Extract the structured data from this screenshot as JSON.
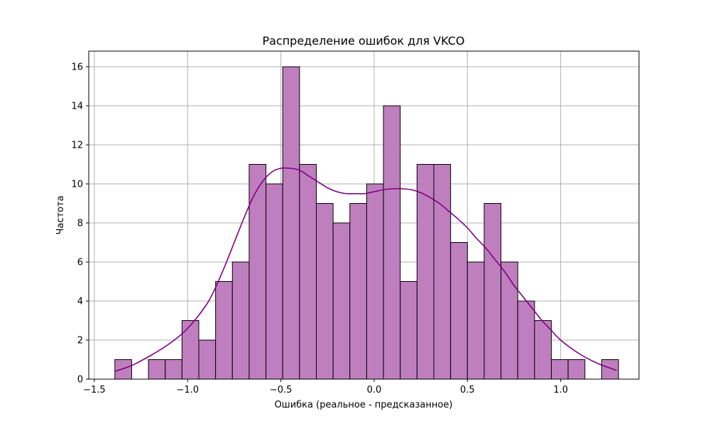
{
  "chart_data": {
    "type": "bar",
    "title": "Распределение ошибок для VKCO",
    "xlabel": "Ошибка (реальное - предсказанное)",
    "ylabel": "Частота",
    "xlim": [
      -1.53,
      1.42
    ],
    "ylim": [
      0,
      16.8
    ],
    "x_ticks": [
      -1.5,
      -1.0,
      -0.5,
      0.0,
      0.5,
      1.0
    ],
    "x_tick_labels": [
      "−1.5",
      "−1.0",
      "−0.5",
      "0.0",
      "0.5",
      "1.0"
    ],
    "y_ticks": [
      0,
      2,
      4,
      6,
      8,
      10,
      12,
      14,
      16
    ],
    "y_tick_labels": [
      "0",
      "2",
      "4",
      "6",
      "8",
      "10",
      "12",
      "14",
      "16"
    ],
    "grid": true,
    "bar_color": "#bf7fbf",
    "bar_edge_color": "#000000",
    "kde_color": "#800080",
    "bins": [
      {
        "start": -1.39,
        "end": -1.3,
        "count": 1
      },
      {
        "start": -1.3,
        "end": -1.21,
        "count": 0
      },
      {
        "start": -1.21,
        "end": -1.12,
        "count": 1
      },
      {
        "start": -1.12,
        "end": -1.03,
        "count": 1
      },
      {
        "start": -1.03,
        "end": -0.94,
        "count": 3
      },
      {
        "start": -0.94,
        "end": -0.85,
        "count": 2
      },
      {
        "start": -0.85,
        "end": -0.76,
        "count": 5
      },
      {
        "start": -0.76,
        "end": -0.67,
        "count": 6
      },
      {
        "start": -0.67,
        "end": -0.58,
        "count": 11
      },
      {
        "start": -0.58,
        "end": -0.49,
        "count": 10
      },
      {
        "start": -0.49,
        "end": -0.4,
        "count": 16
      },
      {
        "start": -0.4,
        "end": -0.31,
        "count": 11
      },
      {
        "start": -0.31,
        "end": -0.22,
        "count": 9
      },
      {
        "start": -0.22,
        "end": -0.13,
        "count": 8
      },
      {
        "start": -0.13,
        "end": -0.04,
        "count": 9
      },
      {
        "start": -0.04,
        "end": 0.05,
        "count": 10
      },
      {
        "start": 0.05,
        "end": 0.14,
        "count": 14
      },
      {
        "start": 0.14,
        "end": 0.23,
        "count": 5
      },
      {
        "start": 0.23,
        "end": 0.32,
        "count": 11
      },
      {
        "start": 0.32,
        "end": 0.41,
        "count": 11
      },
      {
        "start": 0.41,
        "end": 0.5,
        "count": 7
      },
      {
        "start": 0.5,
        "end": 0.59,
        "count": 6
      },
      {
        "start": 0.59,
        "end": 0.68,
        "count": 9
      },
      {
        "start": 0.68,
        "end": 0.77,
        "count": 6
      },
      {
        "start": 0.77,
        "end": 0.86,
        "count": 4
      },
      {
        "start": 0.86,
        "end": 0.95,
        "count": 3
      },
      {
        "start": 0.95,
        "end": 1.04,
        "count": 1
      },
      {
        "start": 1.04,
        "end": 1.13,
        "count": 1
      },
      {
        "start": 1.13,
        "end": 1.22,
        "count": 0
      },
      {
        "start": 1.22,
        "end": 1.31,
        "count": 1
      }
    ],
    "kde": {
      "x": [
        -1.39,
        -1.3,
        -1.2,
        -1.1,
        -1.0,
        -0.9,
        -0.85,
        -0.8,
        -0.75,
        -0.7,
        -0.65,
        -0.6,
        -0.55,
        -0.5,
        -0.45,
        -0.4,
        -0.35,
        -0.3,
        -0.25,
        -0.2,
        -0.15,
        -0.1,
        -0.05,
        0.0,
        0.05,
        0.1,
        0.15,
        0.2,
        0.25,
        0.3,
        0.35,
        0.4,
        0.45,
        0.5,
        0.55,
        0.6,
        0.65,
        0.7,
        0.75,
        0.8,
        0.85,
        0.9,
        0.95,
        1.0,
        1.1,
        1.2,
        1.3
      ],
      "y": [
        0.4,
        0.7,
        1.2,
        1.8,
        2.6,
        3.8,
        4.7,
        5.8,
        7.0,
        8.2,
        9.3,
        10.1,
        10.6,
        10.8,
        10.8,
        10.7,
        10.4,
        10.1,
        9.8,
        9.6,
        9.5,
        9.5,
        9.5,
        9.6,
        9.7,
        9.75,
        9.75,
        9.7,
        9.55,
        9.3,
        9.0,
        8.6,
        8.2,
        7.75,
        7.2,
        6.7,
        6.1,
        5.5,
        4.8,
        4.2,
        3.6,
        3.0,
        2.5,
        2.0,
        1.3,
        0.8,
        0.45
      ]
    }
  }
}
